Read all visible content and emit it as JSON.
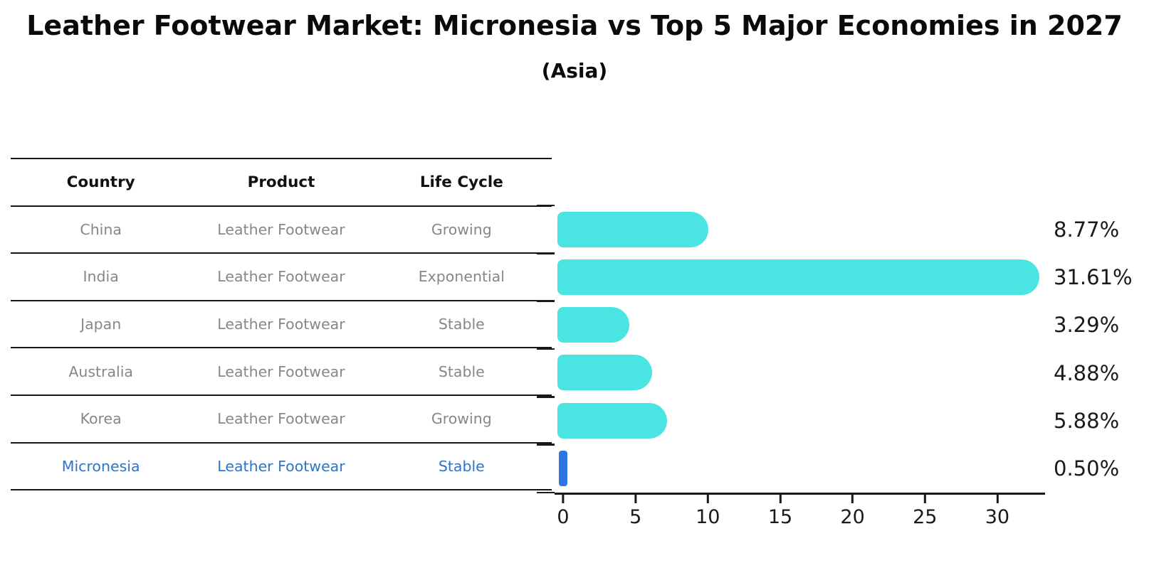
{
  "header": {
    "title": "Leather Footwear Market: Micronesia vs Top 5 Major Economies in 2027",
    "subtitle": "(Asia)"
  },
  "table": {
    "columns": {
      "country": "Country",
      "product": "Product",
      "life_cycle": "Life Cycle"
    },
    "rows": [
      {
        "country": "China",
        "product": "Leather Footwear",
        "life_cycle": "Growing"
      },
      {
        "country": "India",
        "product": "Leather Footwear",
        "life_cycle": "Exponential"
      },
      {
        "country": "Japan",
        "product": "Leather Footwear",
        "life_cycle": "Stable"
      },
      {
        "country": "Australia",
        "product": "Leather Footwear",
        "life_cycle": "Stable"
      },
      {
        "country": "Korea",
        "product": "Leather Footwear",
        "life_cycle": "Growing"
      },
      {
        "country": "Micronesia",
        "product": "Leather Footwear",
        "life_cycle": "Stable"
      }
    ],
    "highlight_row": 5,
    "highlight_color": "#2E74C9"
  },
  "chart_data": {
    "type": "bar",
    "orientation": "horizontal",
    "title": "Leather Footwear Market: Micronesia vs Top 5 Major Economies in 2027",
    "subtitle": "(Asia)",
    "categories": [
      "China",
      "India",
      "Japan",
      "Australia",
      "Korea",
      "Micronesia"
    ],
    "values": [
      8.77,
      31.61,
      3.29,
      4.88,
      5.88,
      0.5
    ],
    "value_labels": [
      "8.77%",
      "31.61%",
      "3.29%",
      "4.88%",
      "5.88%",
      "0.50%"
    ],
    "unit": "%",
    "bar_colors": [
      "#4AE5E2",
      "#4AE5E2",
      "#4AE5E2",
      "#4AE5E2",
      "#4AE5E2",
      "#2B74E2"
    ],
    "xticks": [
      0,
      5,
      10,
      15,
      20,
      25,
      30
    ],
    "xlim": [
      0,
      33.3
    ],
    "xlabel": "",
    "ylabel": "",
    "grid": false,
    "legend": false
  }
}
